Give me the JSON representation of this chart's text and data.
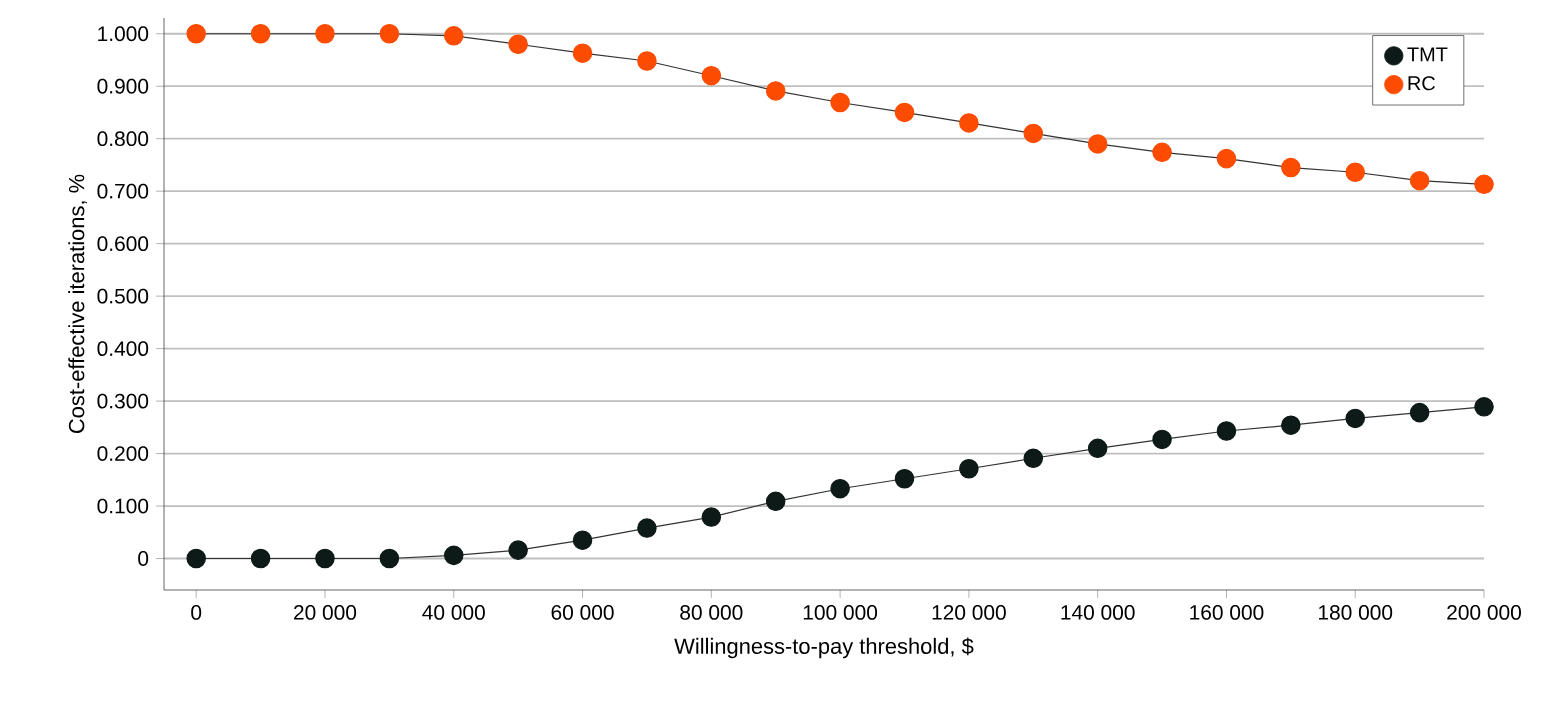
{
  "chart_data": {
    "type": "line",
    "xlabel": "Willingness-to-pay threshold, $",
    "ylabel": "Cost-effective iterations, %",
    "x": [
      0,
      10000,
      20000,
      30000,
      40000,
      50000,
      60000,
      70000,
      80000,
      90000,
      100000,
      110000,
      120000,
      130000,
      140000,
      150000,
      160000,
      170000,
      180000,
      190000,
      200000
    ],
    "series": [
      {
        "name": "TMT",
        "color": "#0d1a17",
        "values": [
          0,
          0,
          0,
          0,
          0.006,
          0.016,
          0.035,
          0.058,
          0.079,
          0.109,
          0.133,
          0.152,
          0.171,
          0.191,
          0.21,
          0.227,
          0.243,
          0.254,
          0.267,
          0.278,
          0.289
        ]
      },
      {
        "name": "RC",
        "color": "#fc4c02",
        "values": [
          1.0,
          1.0,
          1.0,
          1.0,
          0.996,
          0.98,
          0.963,
          0.948,
          0.92,
          0.891,
          0.869,
          0.85,
          0.83,
          0.81,
          0.79,
          0.774,
          0.762,
          0.745,
          0.736,
          0.72,
          0.713
        ]
      }
    ],
    "xlim": [
      -5000,
      200000
    ],
    "ylim": [
      -0.06,
      1.03
    ],
    "xticks": [
      {
        "value": 0,
        "label": "0"
      },
      {
        "value": 20000,
        "label": "20 000"
      },
      {
        "value": 40000,
        "label": "40 000"
      },
      {
        "value": 60000,
        "label": "60 000"
      },
      {
        "value": 80000,
        "label": "80 000"
      },
      {
        "value": 100000,
        "label": "100 000"
      },
      {
        "value": 120000,
        "label": "120 000"
      },
      {
        "value": 140000,
        "label": "140 000"
      },
      {
        "value": 160000,
        "label": "160 000"
      },
      {
        "value": 180000,
        "label": "180 000"
      },
      {
        "value": 200000,
        "label": "200 000"
      }
    ],
    "yticks": [
      {
        "value": 0,
        "label": "0"
      },
      {
        "value": 0.1,
        "label": "0.100"
      },
      {
        "value": 0.2,
        "label": "0.200"
      },
      {
        "value": 0.3,
        "label": "0.300"
      },
      {
        "value": 0.4,
        "label": "0.400"
      },
      {
        "value": 0.5,
        "label": "0.500"
      },
      {
        "value": 0.6,
        "label": "0.600"
      },
      {
        "value": 0.7,
        "label": "0.700"
      },
      {
        "value": 0.8,
        "label": "0.800"
      },
      {
        "value": 0.9,
        "label": "0.900"
      },
      {
        "value": 1.0,
        "label": "1.000"
      }
    ],
    "grid": "y",
    "legend": "top right",
    "marker": "circle",
    "line_style": "solid"
  }
}
